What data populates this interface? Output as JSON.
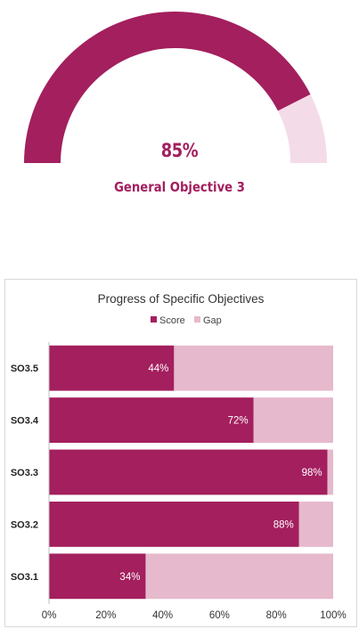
{
  "gauge": {
    "value": 85,
    "value_label": "85%",
    "title": "General Objective 3",
    "colors": {
      "fill": "#a31f5e",
      "remaining": "#f3dce7"
    }
  },
  "chart_data": {
    "type": "bar",
    "orientation": "horizontal",
    "stacked": true,
    "title": "Progress of Specific Objectives",
    "categories": [
      "SO3.5",
      "SO3.4",
      "SO3.3",
      "SO3.2",
      "SO3.1"
    ],
    "series": [
      {
        "name": "Score",
        "values": [
          44,
          72,
          98,
          88,
          34
        ],
        "color": "#a31f5e"
      },
      {
        "name": "Gap",
        "values": [
          56,
          28,
          2,
          12,
          66
        ],
        "color": "#e6b9cc"
      }
    ],
    "data_labels": [
      "44%",
      "72%",
      "98%",
      "88%",
      "34%"
    ],
    "x_ticks": [
      "0%",
      "20%",
      "40%",
      "60%",
      "80%",
      "100%"
    ],
    "xlim": [
      0,
      100
    ],
    "legend_position": "top",
    "grid": false
  }
}
